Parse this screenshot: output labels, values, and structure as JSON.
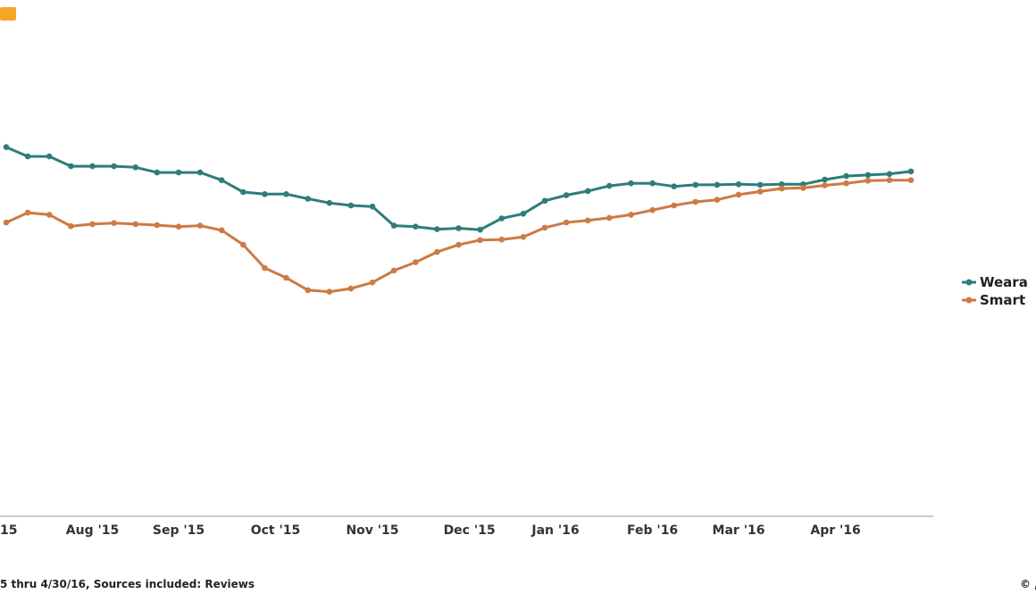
{
  "colors": {
    "badge": "#f5a623",
    "axis": "#bbbbbb"
  },
  "footer": {
    "source_note": "5 thru 4/30/16, Sources included: Reviews",
    "copyright": "© ,"
  },
  "chart_data": {
    "type": "line",
    "x_ticks": [
      "15",
      "Aug '15",
      "Sep '15",
      "Oct '15",
      "Nov '15",
      "Dec '15",
      "Jan '16",
      "Feb '16",
      "Mar '16",
      "Apr '16"
    ],
    "x_tick_index": [
      0,
      4,
      8,
      12.5,
      17,
      21.5,
      25.5,
      30,
      34,
      38.5
    ],
    "legend_position": "right",
    "grid": false,
    "ylim": [
      0,
      100
    ],
    "series": [
      {
        "name": "Weara",
        "color": "#2e7d7a",
        "values": [
          71.5,
          69.7,
          69.7,
          67.8,
          67.8,
          67.8,
          67.6,
          66.6,
          66.6,
          66.6,
          65.1,
          62.8,
          62.4,
          62.4,
          61.5,
          60.7,
          60.2,
          60.0,
          56.3,
          56.1,
          55.6,
          55.8,
          55.5,
          57.7,
          58.6,
          61.1,
          62.2,
          63.0,
          64.0,
          64.5,
          64.5,
          63.9,
          64.2,
          64.2,
          64.3,
          64.2,
          64.3,
          64.3,
          65.2,
          65.9,
          66.1,
          66.3,
          66.8
        ]
      },
      {
        "name": "Smart",
        "color": "#cd7a45",
        "values": [
          56.9,
          58.8,
          58.4,
          56.2,
          56.6,
          56.8,
          56.6,
          56.4,
          56.1,
          56.3,
          55.4,
          52.6,
          48.1,
          46.2,
          43.8,
          43.5,
          44.1,
          45.3,
          47.6,
          49.2,
          51.2,
          52.6,
          53.5,
          53.6,
          54.1,
          55.9,
          56.9,
          57.3,
          57.8,
          58.4,
          59.3,
          60.2,
          60.9,
          61.3,
          62.3,
          62.9,
          63.5,
          63.6,
          64.1,
          64.5,
          65.0,
          65.1,
          65.1
        ]
      }
    ]
  }
}
